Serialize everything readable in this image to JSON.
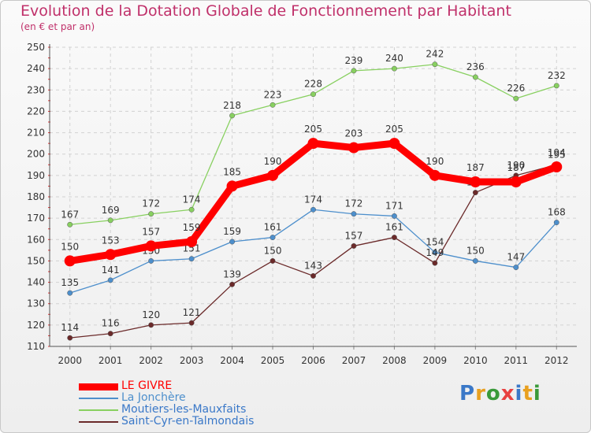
{
  "chart_data": {
    "type": "line",
    "title": "Evolution de la Dotation Globale de Fonctionnement par Habitant",
    "subtitle": "(en € et par an)",
    "x": [
      "2000",
      "2001",
      "2002",
      "2003",
      "2004",
      "2005",
      "2006",
      "2007",
      "2008",
      "2009",
      "2010",
      "2011",
      "2012"
    ],
    "ylim": [
      110,
      250
    ],
    "yticks": [
      110,
      120,
      130,
      140,
      150,
      160,
      170,
      180,
      190,
      200,
      210,
      220,
      230,
      240,
      250
    ],
    "grid": true,
    "legend_position": "bottom-left",
    "series": [
      {
        "name": "LE GIVRE",
        "color": "#ff0000",
        "values": [
          150,
          153,
          157,
          159,
          185,
          190,
          205,
          203,
          205,
          190,
          187,
          187,
          194
        ]
      },
      {
        "name": "La Jonchère",
        "color": "#4d8fcc",
        "values": [
          135,
          141,
          150,
          151,
          159,
          161,
          174,
          172,
          171,
          154,
          150,
          147,
          168
        ]
      },
      {
        "name": "Moutiers-les-Mauxfaits",
        "color": "#88d060",
        "values": [
          167,
          169,
          172,
          174,
          218,
          223,
          228,
          239,
          240,
          242,
          236,
          226,
          232
        ]
      },
      {
        "name": "Saint-Cyr-en-Talmondais",
        "color": "#6b2a2a",
        "values": [
          114,
          116,
          120,
          121,
          139,
          150,
          143,
          157,
          161,
          149,
          182,
          190,
          195
        ]
      }
    ]
  },
  "brand": {
    "letters": [
      "P",
      "r",
      "o",
      "x",
      "i",
      "t",
      "i"
    ],
    "colors": [
      "#3a78c8",
      "#e8a020",
      "#3a9a3a",
      "#e84040",
      "#3a78c8",
      "#e8a020",
      "#3a9a3a"
    ]
  }
}
